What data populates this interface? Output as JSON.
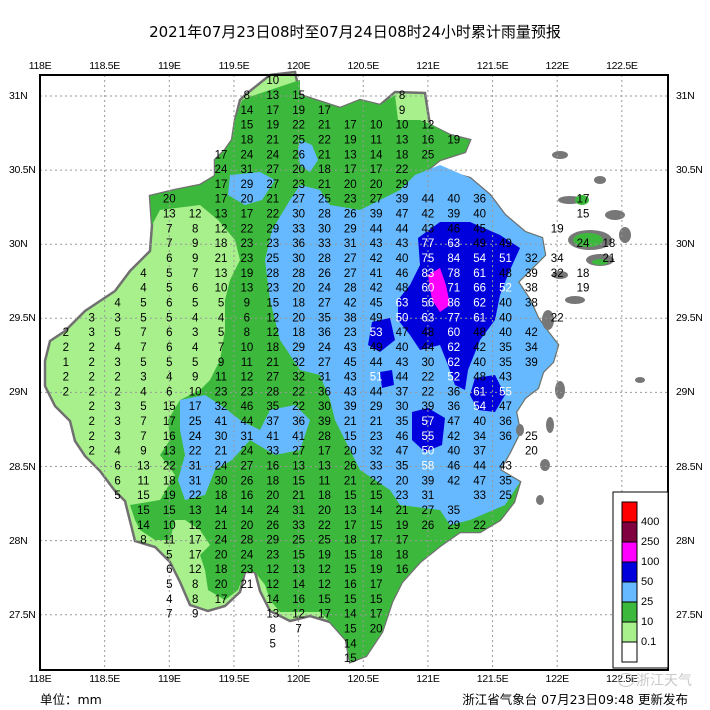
{
  "title": "2021年07月23日08时至07月24日08时24小时累计雨量预报",
  "lon_labels": [
    "118E",
    "118.5E",
    "119E",
    "119.5E",
    "120E",
    "120.5E",
    "121E",
    "121.5E",
    "122E",
    "122.5E"
  ],
  "lat_labels": [
    "31N",
    "30.5N",
    "30N",
    "29.5N",
    "29N",
    "28.5N",
    "28N",
    "27.5N"
  ],
  "legend": {
    "colors": [
      "#ff0000",
      "#800040",
      "#ff00ff",
      "#0000dd",
      "#66b8ff",
      "#3cb93c",
      "#a8f08c",
      "#ffffff"
    ],
    "labels": [
      "400",
      "250",
      "100",
      "50",
      "25",
      "10",
      "0.1"
    ]
  },
  "footer": {
    "unit": "单位：mm",
    "issuer": "浙江省气象台 07月23日09:48 更新发布"
  },
  "watermark": "浙江天气",
  "stations": [
    {
      "lat": 31.1,
      "lon0": 119.8,
      "v": [
        10
      ]
    },
    {
      "lat": 31.0,
      "lon0": 119.6,
      "v": [
        8,
        13,
        15,
        null,
        null,
        null,
        8
      ]
    },
    {
      "lat": 30.9,
      "lon0": 119.6,
      "v": [
        14,
        17,
        19,
        17,
        null,
        null,
        9
      ]
    },
    {
      "lat": 30.8,
      "lon0": 119.6,
      "v": [
        15,
        19,
        22,
        21,
        17,
        10,
        10,
        12
      ]
    },
    {
      "lat": 30.7,
      "lon0": 119.6,
      "v": [
        18,
        21,
        25,
        22,
        19,
        11,
        13,
        16,
        19
      ]
    },
    {
      "lat": 30.6,
      "lon0": 119.4,
      "v": [
        17,
        24,
        24,
        26,
        21,
        13,
        14,
        18,
        25
      ]
    },
    {
      "lat": 30.5,
      "lon0": 119.4,
      "v": [
        24,
        31,
        27,
        20,
        18,
        17,
        17,
        22
      ]
    },
    {
      "lat": 30.4,
      "lon0": 119.4,
      "v": [
        17,
        29,
        27,
        23,
        21,
        20,
        20,
        29
      ]
    },
    {
      "lat": 30.3,
      "lon0": 119.0,
      "v": [
        20,
        null,
        17,
        20,
        21,
        27,
        25,
        23,
        27,
        39,
        44,
        40,
        36,
        null,
        null,
        null,
        17
      ]
    },
    {
      "lat": 30.2,
      "lon0": 119.0,
      "v": [
        13,
        12,
        13,
        17,
        22,
        30,
        28,
        26,
        39,
        47,
        42,
        39,
        40,
        null,
        null,
        null,
        15
      ]
    },
    {
      "lat": 30.1,
      "lon0": 119.0,
      "v": [
        7,
        8,
        12,
        22,
        29,
        33,
        30,
        29,
        44,
        44,
        43,
        46,
        45,
        null,
        null,
        19
      ]
    },
    {
      "lat": 30.0,
      "lon0": 119.0,
      "v": [
        7,
        9,
        18,
        23,
        23,
        36,
        33,
        31,
        43,
        43,
        77,
        63,
        49,
        49,
        null,
        null,
        24,
        18
      ]
    },
    {
      "lat": 29.9,
      "lon0": 119.0,
      "v": [
        6,
        9,
        21,
        23,
        25,
        30,
        28,
        27,
        42,
        40,
        75,
        84,
        54,
        51,
        32,
        34,
        null,
        21
      ]
    },
    {
      "lat": 29.8,
      "lon0": 118.8,
      "v": [
        4,
        5,
        7,
        13,
        19,
        28,
        28,
        26,
        27,
        41,
        46,
        83,
        78,
        61,
        48,
        39,
        32,
        18
      ]
    },
    {
      "lat": 29.7,
      "lon0": 118.8,
      "v": [
        4,
        5,
        6,
        10,
        13,
        23,
        20,
        24,
        28,
        42,
        48,
        60,
        71,
        66,
        52,
        38,
        null,
        19
      ]
    },
    {
      "lat": 29.6,
      "lon0": 118.6,
      "v": [
        4,
        5,
        6,
        5,
        5,
        9,
        15,
        18,
        27,
        42,
        45,
        63,
        56,
        86,
        62,
        40,
        38
      ]
    },
    {
      "lat": 29.5,
      "lon0": 118.4,
      "v": [
        3,
        3,
        5,
        5,
        4,
        4,
        6,
        12,
        20,
        35,
        38,
        49,
        50,
        63,
        77,
        61,
        40,
        null,
        22
      ]
    },
    {
      "lat": 29.4,
      "lon0": 118.2,
      "v": [
        2,
        3,
        5,
        7,
        6,
        3,
        5,
        8,
        12,
        18,
        36,
        23,
        53,
        47,
        48,
        60,
        48,
        40,
        42
      ]
    },
    {
      "lat": 29.3,
      "lon0": 118.2,
      "v": [
        2,
        2,
        4,
        7,
        6,
        4,
        7,
        10,
        18,
        29,
        24,
        43,
        49,
        40,
        44,
        62,
        42,
        35,
        34
      ]
    },
    {
      "lat": 29.2,
      "lon0": 118.2,
      "v": [
        1,
        2,
        3,
        5,
        5,
        5,
        9,
        11,
        21,
        32,
        27,
        45,
        44,
        43,
        30,
        62,
        40,
        35,
        39
      ]
    },
    {
      "lat": 29.1,
      "lon0": 118.2,
      "v": [
        2,
        2,
        2,
        3,
        4,
        9,
        11,
        12,
        27,
        32,
        31,
        43,
        51,
        44,
        22,
        52,
        48,
        43
      ]
    },
    {
      "lat": 29.0,
      "lon0": 118.2,
      "v": [
        2,
        2,
        2,
        4,
        6,
        10,
        23,
        23,
        28,
        22,
        36,
        43,
        44,
        37,
        22,
        36,
        61,
        55
      ]
    },
    {
      "lat": 28.9,
      "lon0": 118.4,
      "v": [
        2,
        3,
        5,
        15,
        17,
        32,
        46,
        35,
        22,
        30,
        39,
        29,
        30,
        39,
        36,
        54,
        47
      ]
    },
    {
      "lat": 28.8,
      "lon0": 118.4,
      "v": [
        2,
        3,
        7,
        17,
        25,
        41,
        44,
        37,
        36,
        39,
        21,
        21,
        35,
        57,
        47,
        40,
        36
      ]
    },
    {
      "lat": 28.7,
      "lon0": 118.4,
      "v": [
        2,
        3,
        7,
        16,
        24,
        30,
        31,
        41,
        41,
        28,
        15,
        23,
        46,
        55,
        42,
        34,
        36,
        25
      ]
    },
    {
      "lat": 28.6,
      "lon0": 118.4,
      "v": [
        2,
        4,
        9,
        13,
        22,
        21,
        24,
        33,
        27,
        17,
        20,
        32,
        47,
        50,
        40,
        37,
        null,
        20
      ]
    },
    {
      "lat": 28.5,
      "lon0": 118.6,
      "v": [
        6,
        13,
        22,
        31,
        24,
        27,
        16,
        13,
        13,
        26,
        33,
        35,
        58,
        46,
        44,
        43
      ]
    },
    {
      "lat": 28.4,
      "lon0": 118.6,
      "v": [
        6,
        11,
        18,
        31,
        30,
        26,
        18,
        15,
        11,
        21,
        22,
        20,
        39,
        42,
        47,
        35
      ]
    },
    {
      "lat": 28.3,
      "lon0": 118.6,
      "v": [
        5,
        15,
        19,
        22,
        18,
        16,
        20,
        21,
        18,
        15,
        15,
        23,
        31,
        null,
        33,
        25
      ]
    },
    {
      "lat": 28.2,
      "lon0": 118.8,
      "v": [
        15,
        15,
        13,
        14,
        14,
        24,
        31,
        20,
        13,
        14,
        21,
        27,
        35
      ]
    },
    {
      "lat": 28.1,
      "lon0": 118.8,
      "v": [
        14,
        10,
        12,
        21,
        20,
        26,
        33,
        22,
        17,
        15,
        19,
        26,
        29,
        22
      ]
    },
    {
      "lat": 28.0,
      "lon0": 118.8,
      "v": [
        8,
        11,
        17,
        24,
        28,
        29,
        25,
        25,
        18,
        17,
        17
      ]
    },
    {
      "lat": 27.9,
      "lon0": 119.0,
      "v": [
        5,
        17,
        20,
        24,
        23,
        15,
        19,
        15,
        18,
        18
      ]
    },
    {
      "lat": 27.8,
      "lon0": 119.0,
      "v": [
        6,
        12,
        18,
        23,
        12,
        13,
        12,
        15,
        19,
        16
      ]
    },
    {
      "lat": 27.7,
      "lon0": 119.0,
      "v": [
        5,
        8,
        20,
        21,
        12,
        14,
        12,
        16,
        17
      ]
    },
    {
      "lat": 27.6,
      "lon0": 119.0,
      "v": [
        4,
        8,
        17,
        null,
        14,
        16,
        15,
        15,
        15
      ]
    },
    {
      "lat": 27.5,
      "lon0": 119.0,
      "v": [
        7,
        9,
        null,
        null,
        13,
        12,
        17,
        14,
        17
      ]
    },
    {
      "lat": 27.4,
      "lon0": 119.8,
      "v": [
        8,
        7,
        null,
        15,
        20
      ]
    },
    {
      "lat": 27.3,
      "lon0": 119.8,
      "v": [
        5,
        null,
        null,
        14
      ]
    },
    {
      "lat": 27.2,
      "lon0": 120.4,
      "v": [
        15
      ]
    }
  ]
}
